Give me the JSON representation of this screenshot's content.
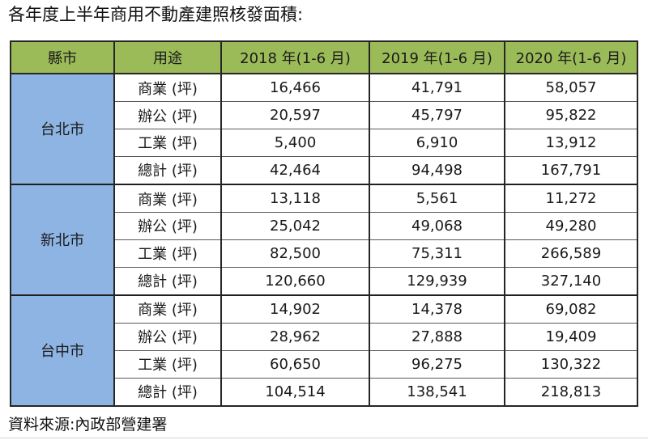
{
  "title": "各年度上半年商用不動產建照核發面積:",
  "source": "資料來源:內政部營建署",
  "colors": {
    "header_bg": "#9BBB59",
    "city_bg": "#8DB4E2",
    "outer_border": "#262626",
    "row_border": "#595959"
  },
  "table": {
    "headers": [
      "縣市",
      "用途",
      "2018 年(1-6 月)",
      "2019 年(1-6 月)",
      "2020 年(1-6 月)"
    ],
    "groups": [
      {
        "city": "台北市",
        "rows": [
          {
            "use": "商業 (坪)",
            "values": [
              "16,466",
              "41,791",
              "58,057"
            ]
          },
          {
            "use": "辦公 (坪)",
            "values": [
              "20,597",
              "45,797",
              "95,822"
            ]
          },
          {
            "use": "工業 (坪)",
            "values": [
              "5,400",
              "6,910",
              "13,912"
            ]
          },
          {
            "use": "總計 (坪)",
            "values": [
              "42,464",
              "94,498",
              "167,791"
            ]
          }
        ]
      },
      {
        "city": "新北市",
        "rows": [
          {
            "use": "商業 (坪)",
            "values": [
              "13,118",
              "5,561",
              "11,272"
            ]
          },
          {
            "use": "辦公 (坪)",
            "values": [
              "25,042",
              "49,068",
              "49,280"
            ]
          },
          {
            "use": "工業 (坪)",
            "values": [
              "82,500",
              "75,311",
              "266,589"
            ]
          },
          {
            "use": "總計 (坪)",
            "values": [
              "120,660",
              "129,939",
              "327,140"
            ]
          }
        ]
      },
      {
        "city": "台中市",
        "rows": [
          {
            "use": "商業 (坪)",
            "values": [
              "14,902",
              "14,378",
              "69,082"
            ]
          },
          {
            "use": "辦公 (坪)",
            "values": [
              "28,962",
              "27,888",
              "19,409"
            ]
          },
          {
            "use": "工業 (坪)",
            "values": [
              "60,650",
              "96,275",
              "130,322"
            ]
          },
          {
            "use": "總計 (坪)",
            "values": [
              "104,514",
              "138,541",
              "218,813"
            ]
          }
        ]
      }
    ]
  },
  "chart_data": {
    "type": "table",
    "title": "各年度上半年商用不動產建照核發面積",
    "columns": [
      "縣市",
      "用途",
      "2018 年(1-6 月)",
      "2019 年(1-6 月)",
      "2020 年(1-6 月)"
    ],
    "rows": [
      [
        "台北市",
        "商業 (坪)",
        16466,
        41791,
        58057
      ],
      [
        "台北市",
        "辦公 (坪)",
        20597,
        45797,
        95822
      ],
      [
        "台北市",
        "工業 (坪)",
        5400,
        6910,
        13912
      ],
      [
        "台北市",
        "總計 (坪)",
        42464,
        94498,
        167791
      ],
      [
        "新北市",
        "商業 (坪)",
        13118,
        5561,
        11272
      ],
      [
        "新北市",
        "辦公 (坪)",
        25042,
        49068,
        49280
      ],
      [
        "新北市",
        "工業 (坪)",
        82500,
        75311,
        266589
      ],
      [
        "新北市",
        "總計 (坪)",
        120660,
        129939,
        327140
      ],
      [
        "台中市",
        "商業 (坪)",
        14902,
        14378,
        69082
      ],
      [
        "台中市",
        "辦公 (坪)",
        28962,
        27888,
        19409
      ],
      [
        "台中市",
        "工業 (坪)",
        60650,
        96275,
        130322
      ],
      [
        "台中市",
        "總計 (坪)",
        104514,
        138541,
        218813
      ]
    ],
    "source": "資料來源:內政部營建署"
  }
}
